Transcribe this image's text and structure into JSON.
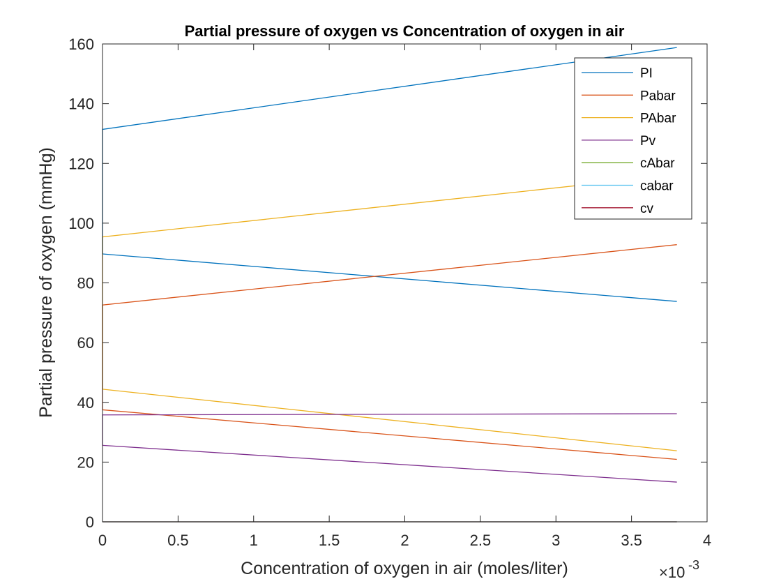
{
  "chart_data": {
    "type": "line",
    "title": "Partial pressure of oxygen vs Concentration of oxygen in air",
    "xlabel": "Concentration of oxygen in air (moles/liter)",
    "ylabel": "Partial pressure of oxygen (mmHg)",
    "x_exponent_label": "×10",
    "x_exponent_power": "-3",
    "xlim": [
      0,
      0.004
    ],
    "ylim": [
      0,
      160
    ],
    "x_ticks": [
      0,
      0.0005,
      0.001,
      0.0015,
      0.002,
      0.0025,
      0.003,
      0.0035,
      0.004
    ],
    "x_tick_labels": [
      "0",
      "0.5",
      "1",
      "1.5",
      "2",
      "2.5",
      "3",
      "3.5",
      "4"
    ],
    "y_ticks": [
      0,
      20,
      40,
      60,
      80,
      100,
      120,
      140,
      160
    ],
    "y_tick_labels": [
      "0",
      "20",
      "40",
      "60",
      "80",
      "100",
      "120",
      "140",
      "160"
    ],
    "grid": false,
    "legend_position": "top-right",
    "series": [
      {
        "name": "PI",
        "color": "#0072BD",
        "x": [
          0,
          0,
          0.0038
        ],
        "y": [
          89.7,
          131.4,
          158.8
        ]
      },
      {
        "name": "PI (2)",
        "color": "#0072BD",
        "x": [
          0,
          0.0038
        ],
        "y": [
          89.7,
          73.8
        ]
      },
      {
        "name": "Pabar",
        "color": "#D95319",
        "x": [
          0,
          0,
          0.0038
        ],
        "y": [
          37.5,
          72.6,
          92.8
        ]
      },
      {
        "name": "Pabar (2)",
        "color": "#D95319",
        "x": [
          0,
          0.0038
        ],
        "y": [
          37.5,
          20.9
        ]
      },
      {
        "name": "PAbar",
        "color": "#EDB120",
        "x": [
          0,
          0,
          0.0038
        ],
        "y": [
          44.4,
          95.4,
          116.2
        ]
      },
      {
        "name": "PAbar (2)",
        "color": "#EDB120",
        "x": [
          0,
          0.0038
        ],
        "y": [
          44.4,
          23.8
        ]
      },
      {
        "name": "Pv",
        "color": "#7E2F8E",
        "x": [
          0,
          0,
          0.0038
        ],
        "y": [
          25.6,
          35.8,
          36.2
        ]
      },
      {
        "name": "Pv (2)",
        "color": "#7E2F8E",
        "x": [
          0,
          0.0038
        ],
        "y": [
          25.6,
          13.3
        ]
      },
      {
        "name": "cAbar",
        "color": "#77AC30",
        "x": [
          0,
          0.0038
        ],
        "y": [
          0,
          0
        ]
      },
      {
        "name": "cabar",
        "color": "#4DBEEE",
        "x": [
          0,
          0.0038
        ],
        "y": [
          0,
          0
        ]
      },
      {
        "name": "cv",
        "color": "#A2142F",
        "x": [
          0,
          0.0038
        ],
        "y": [
          0,
          0
        ]
      }
    ],
    "legend": [
      {
        "label": "PI",
        "color": "#0072BD"
      },
      {
        "label": "Pabar",
        "color": "#D95319"
      },
      {
        "label": "PAbar",
        "color": "#EDB120"
      },
      {
        "label": "Pv",
        "color": "#7E2F8E"
      },
      {
        "label": "cAbar",
        "color": "#77AC30"
      },
      {
        "label": "cabar",
        "color": "#4DBEEE"
      },
      {
        "label": "cv",
        "color": "#A2142F"
      }
    ]
  }
}
